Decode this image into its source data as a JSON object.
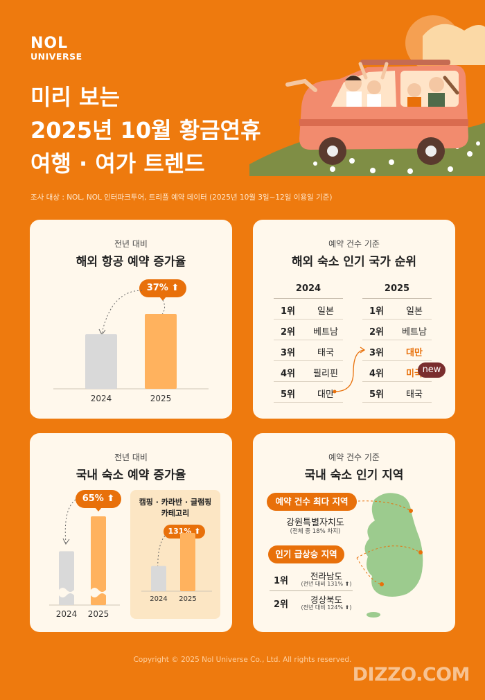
{
  "brand": {
    "line1": "NOL",
    "line2": "UNIVERSE"
  },
  "title": {
    "line1": "미리 보는",
    "line2": "2025년 10월 황금연휴",
    "line3": "여행 · 여가 트렌드"
  },
  "survey_note": "조사 대상 : NOL, NOL 인터파크투어, 트리플 예약 데이터 (2025년 10월 3일~12일 이용일 기준)",
  "colors": {
    "background": "#EE7A0E",
    "card": "#FFF8EC",
    "bar_prev": "#D9D9D9",
    "bar_curr": "#FFB25E",
    "accent": "#E8700A",
    "new_badge": "#7A2E2E",
    "map": "#9CCB8E"
  },
  "chart_data": [
    {
      "type": "bar",
      "subtitle": "전년 대비",
      "title": "해외 항공 예약 증가율",
      "categories": [
        "2024",
        "2025"
      ],
      "values": [
        100,
        137
      ],
      "badge": "37%"
    },
    {
      "type": "table",
      "subtitle": "예약 건수 기준",
      "title": "해외 숙소 인기 국가 순위",
      "columns": [
        "2024",
        "2025"
      ],
      "ranks": [
        "1위",
        "2위",
        "3위",
        "4위",
        "5위"
      ],
      "y2024": [
        "일본",
        "베트남",
        "태국",
        "필리핀",
        "대만"
      ],
      "y2025": [
        "일본",
        "베트남",
        "대만",
        "미국",
        "태국"
      ],
      "highlight_2025": [
        2,
        3
      ],
      "new_label": "new"
    },
    {
      "type": "bar",
      "subtitle": "전년 대비",
      "title": "국내 숙소 예약 증가율",
      "categories": [
        "2024",
        "2025"
      ],
      "values": [
        100,
        165
      ],
      "badge": "65%",
      "axis_break": true,
      "inset": {
        "title_line1": "캠핑 · 카라반 · 글램핑",
        "title_line2": "카테고리",
        "categories": [
          "2024",
          "2025"
        ],
        "values": [
          100,
          231
        ],
        "badge": "131%"
      }
    },
    {
      "type": "table",
      "subtitle": "예약 건수 기준",
      "title": "국내 숙소 인기 지역",
      "top_label": "예약 건수 최다 지역",
      "top_region": "강원특별자치도",
      "top_share": "(전체 중 18% 차지)",
      "rising_label": "인기 급상승 지역",
      "rising": [
        {
          "rank": "1위",
          "region": "전라남도",
          "growth": "(전년 대비 131%",
          "arrow": "⬆)"
        },
        {
          "rank": "2위",
          "region": "경상북도",
          "growth": "(전년 대비 124%",
          "arrow": "⬆)"
        }
      ]
    }
  ],
  "footer": "Copyright © 2025 Nol Universe Co., Ltd. All rights reserved.",
  "watermark": "DIZZO.COM"
}
